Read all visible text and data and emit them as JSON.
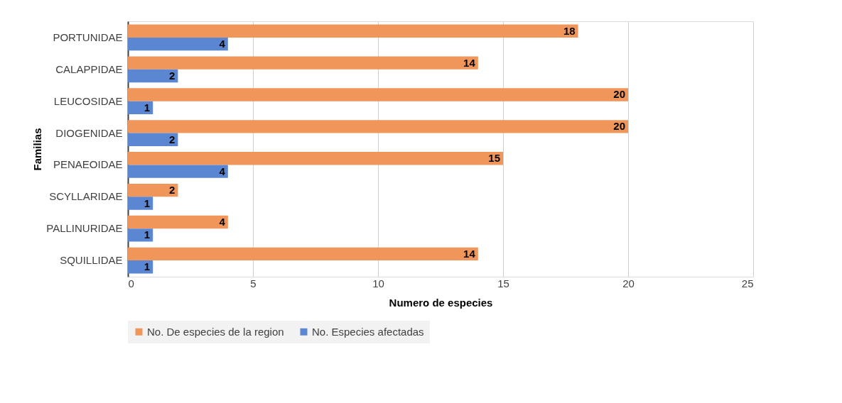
{
  "chart_data": {
    "type": "bar",
    "orientation": "horizontal",
    "xlabel": "Numero de especies",
    "ylabel": "Familias",
    "categories": [
      "PORTUNIDAE",
      "CALAPPIDAE",
      "LEUCOSIDAE",
      "DIOGENIDAE",
      "PENAEOIDAE",
      "SCYLLARIDAE",
      "PALLINURIDAE",
      "SQUILLIDAE"
    ],
    "series": [
      {
        "name": "No. De especies de la region",
        "color": "#f0965a",
        "values": [
          18,
          14,
          20,
          20,
          15,
          2,
          4,
          14
        ]
      },
      {
        "name": "No. Especies afectadas",
        "color": "#5b87d2",
        "values": [
          4,
          2,
          1,
          2,
          4,
          1,
          1,
          1
        ]
      }
    ],
    "xlim": [
      0,
      25
    ],
    "xticks": [
      0,
      5,
      10,
      15,
      20,
      25
    ],
    "grid": "x",
    "legend": "bottom",
    "data_labels": true
  }
}
